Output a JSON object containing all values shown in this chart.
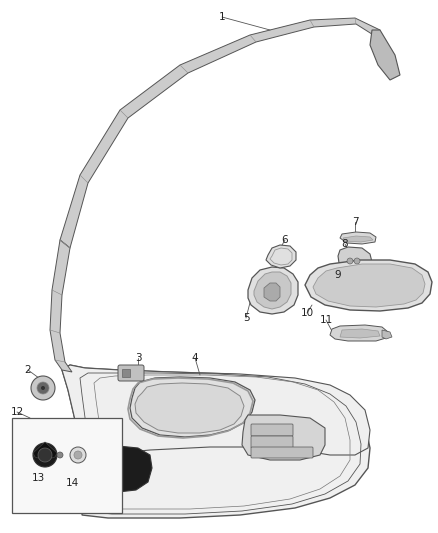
{
  "background_color": "#ffffff",
  "line_color": "#555555",
  "text_color": "#222222",
  "fig_width": 4.38,
  "fig_height": 5.33,
  "dpi": 100
}
